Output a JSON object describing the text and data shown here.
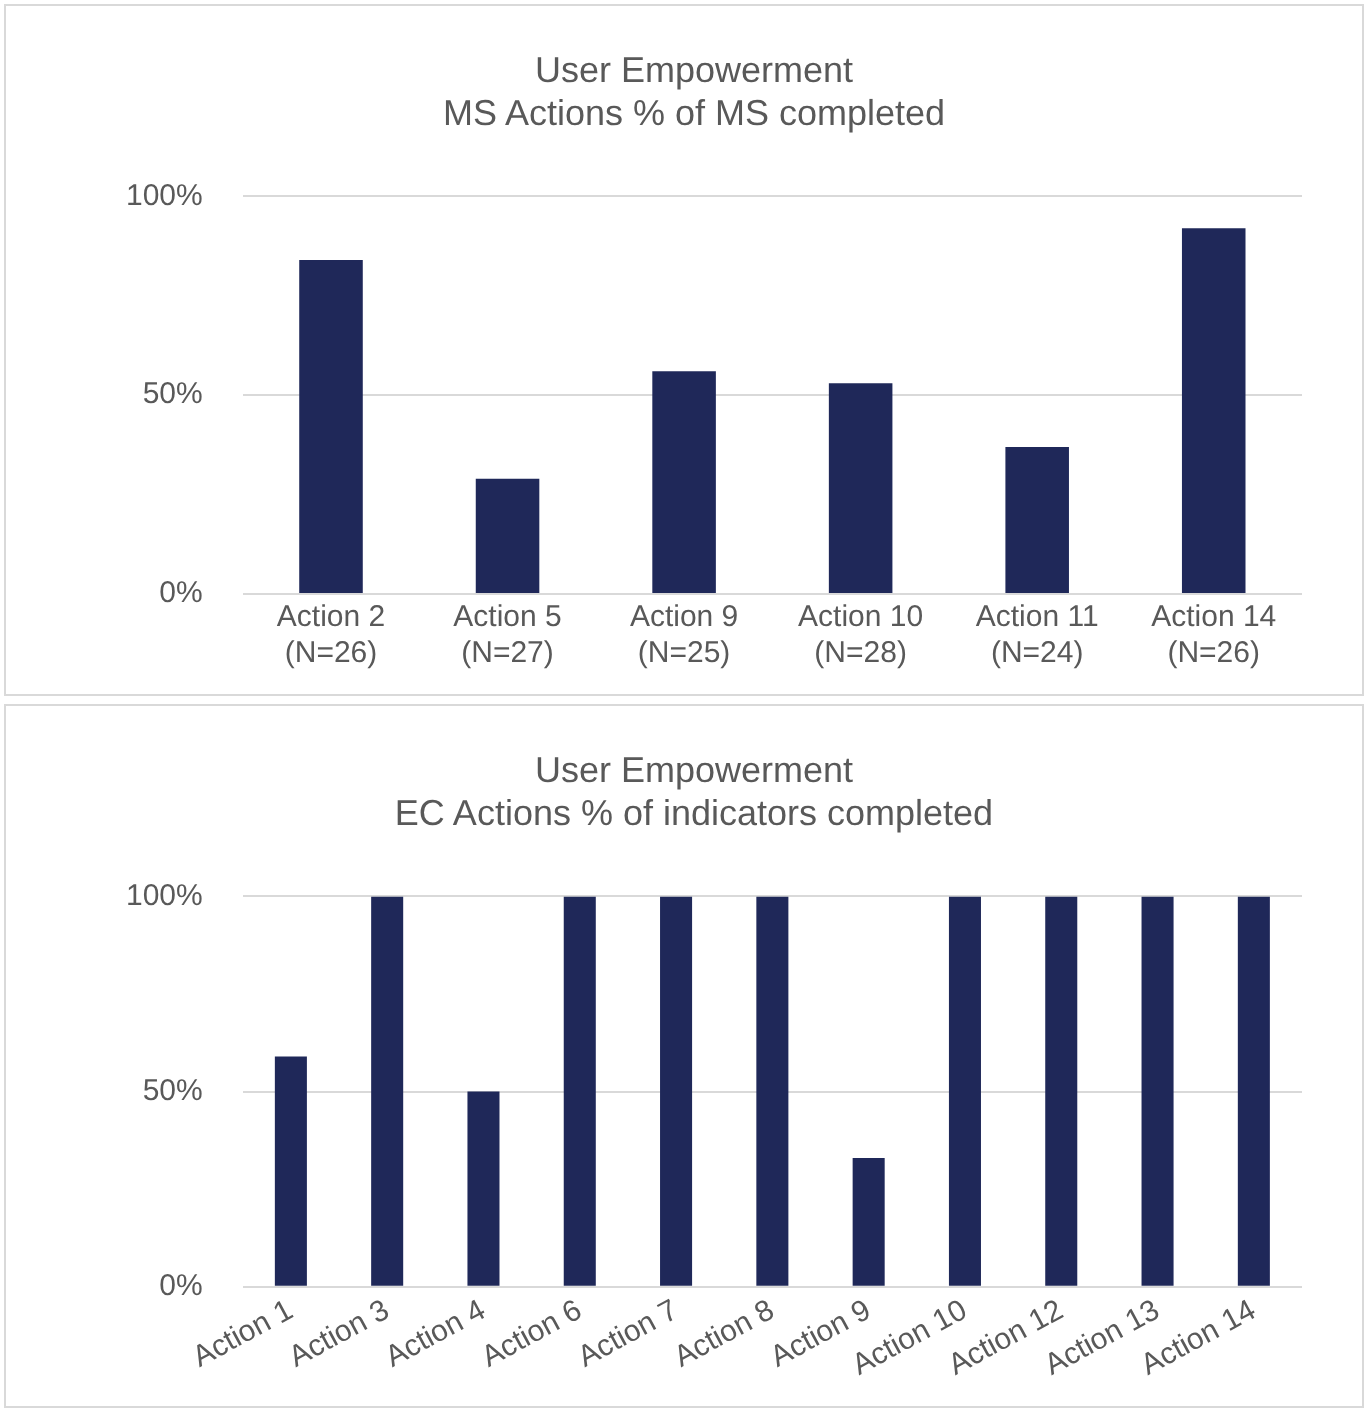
{
  "chart_data": [
    {
      "type": "bar",
      "title": "User Empowerment",
      "subtitle": "MS Actions % of MS completed",
      "categories": [
        "Action 2\n(N=26)",
        "Action 5\n(N=27)",
        "Action 9\n(N=25)",
        "Action 10\n(N=28)",
        "Action 11\n(N=24)",
        "Action 14\n(N=26)"
      ],
      "values": [
        84,
        29,
        56,
        53,
        37,
        92
      ],
      "color": "#1f2859",
      "ylim": [
        0,
        100
      ],
      "yticks": [
        {
          "value": 0,
          "label": "0%"
        },
        {
          "value": 50,
          "label": "50%"
        },
        {
          "value": 100,
          "label": "100%"
        }
      ],
      "grid": "y",
      "legend": false
    },
    {
      "type": "bar",
      "title": "User Empowerment",
      "subtitle": "EC Actions % of indicators completed",
      "categories": [
        "Action 1",
        "Action 3",
        "Action 4",
        "Action 6",
        "Action 7",
        "Action 8",
        "Action 9",
        "Action 10",
        "Action 12",
        "Action 13",
        "Action 14"
      ],
      "values": [
        59,
        100,
        50,
        100,
        100,
        100,
        33,
        100,
        100,
        100,
        100
      ],
      "color": "#1f2859",
      "ylim": [
        0,
        100
      ],
      "yticks": [
        {
          "value": 0,
          "label": "0%"
        },
        {
          "value": 50,
          "label": "50%"
        },
        {
          "value": 100,
          "label": "100%"
        }
      ],
      "grid": "y",
      "legend": false
    }
  ]
}
